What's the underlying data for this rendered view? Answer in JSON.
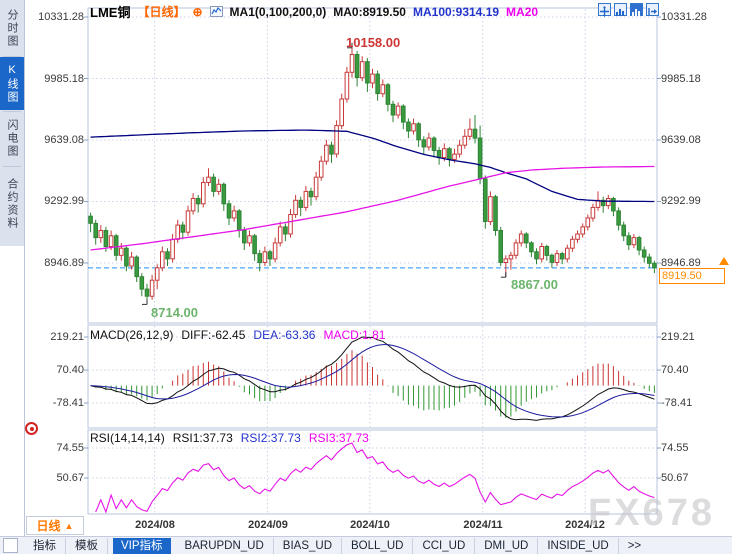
{
  "header": {
    "symbol": "LME铜",
    "period_tag": "【日线】",
    "add_icon": "⊕",
    "ma_settings": "MA1(0,100,200,0)",
    "ma0": "MA0:8919.50",
    "ma100": "MA100:9314.19",
    "ma20": "MA20"
  },
  "sidebar": {
    "active_index": 1,
    "items": [
      {
        "label": "分时图"
      },
      {
        "label": "K线图"
      },
      {
        "label": "闪电图"
      },
      {
        "label": "合约资料"
      }
    ]
  },
  "price_axis": {
    "labels": [
      "10331.28",
      "9985.18",
      "9639.08",
      "9292.99",
      "8946.89"
    ],
    "current": "8919.50"
  },
  "macd_axis": [
    "219.21",
    "70.40",
    "-78.41"
  ],
  "rsi_axis": [
    "74.55",
    "50.67"
  ],
  "macd_header": {
    "name": "MACD(26,12,9)",
    "diff": "DIFF:-62.45",
    "dea": "DEA:-63.36",
    "macd": "MACD:1.81"
  },
  "rsi_header": {
    "name": "RSI(14,14,14)",
    "rsi1": "RSI1:37.73",
    "rsi2": "RSI2:37.73",
    "rsi3": "RSI3:37.73"
  },
  "annotations": {
    "high": "10158.00",
    "low": "8714.00",
    "low2": "8867.00"
  },
  "time_axis": {
    "period": "日线",
    "arrow_up": "▲",
    "months": [
      "2024/08",
      "2024/09",
      "2024/10",
      "2024/11",
      "2024/12"
    ]
  },
  "tabs": [
    "指标",
    "模板",
    "VIP指标",
    "BARUPDN_UD",
    "BIAS_UD",
    "BOLL_UD",
    "CCI_UD",
    "DMI_UD",
    "INSIDE_UD",
    ">>"
  ],
  "tabs_active_index": 2,
  "watermark": "FX678",
  "colors": {
    "up_stroke": "#c93a3a",
    "down_fill": "#3a9a3f",
    "down_stroke": "#2e8434",
    "ma_navy": "#000080",
    "ma_magenta": "#e614e6",
    "dif_line": "#111111",
    "dea_line": "#1c1c9e",
    "rsi_line": "#e614e6",
    "grid": "#ccd2e6",
    "pane_border": "#b7c4dd",
    "tick": "#8fa3c8",
    "price_line": "#1f8fff",
    "accent_orange": "#ff8c00",
    "hist_up": "#cc3333",
    "hist_down": "#339933"
  },
  "chart_data": {
    "type": "candlestick",
    "title": "LME铜 日线",
    "x_months": [
      "2024/08",
      "2024/09",
      "2024/10",
      "2024/11",
      "2024/12"
    ],
    "month_start_indices": [
      13,
      35,
      55,
      77,
      97
    ],
    "price_gridlines": [
      10331.28,
      9985.18,
      9639.08,
      9292.99,
      8946.89
    ],
    "current_price": 8919.5,
    "high_marker_value": 10158.0,
    "low_marker_value": 8714.0,
    "low2_marker": {
      "index": 81,
      "value": 8867.0
    },
    "candles": [
      [
        9210,
        9230,
        9120,
        9170
      ],
      [
        9170,
        9190,
        9050,
        9090
      ],
      [
        9090,
        9160,
        9060,
        9130
      ],
      [
        9130,
        9150,
        9010,
        9040
      ],
      [
        9040,
        9130,
        9020,
        9100
      ],
      [
        9100,
        9110,
        8960,
        8990
      ],
      [
        8990,
        9060,
        8960,
        9030
      ],
      [
        9030,
        9040,
        8900,
        8930
      ],
      [
        8930,
        9010,
        8910,
        8980
      ],
      [
        8980,
        8990,
        8840,
        8870
      ],
      [
        8870,
        8890,
        8760,
        8800
      ],
      [
        8800,
        8830,
        8714,
        8760
      ],
      [
        8760,
        8880,
        8740,
        8850
      ],
      [
        8850,
        8940,
        8800,
        8920
      ],
      [
        8920,
        9040,
        8900,
        9010
      ],
      [
        9010,
        9030,
        8930,
        8970
      ],
      [
        8970,
        9110,
        8950,
        9080
      ],
      [
        9080,
        9190,
        9060,
        9160
      ],
      [
        9160,
        9180,
        9080,
        9120
      ],
      [
        9120,
        9270,
        9100,
        9240
      ],
      [
        9240,
        9340,
        9220,
        9310
      ],
      [
        9310,
        9330,
        9230,
        9280
      ],
      [
        9280,
        9430,
        9260,
        9400
      ],
      [
        9400,
        9480,
        9380,
        9430
      ],
      [
        9430,
        9450,
        9320,
        9350
      ],
      [
        9350,
        9420,
        9330,
        9390
      ],
      [
        9390,
        9400,
        9240,
        9280
      ],
      [
        9280,
        9300,
        9160,
        9200
      ],
      [
        9200,
        9270,
        9180,
        9240
      ],
      [
        9240,
        9250,
        9090,
        9130
      ],
      [
        9130,
        9150,
        9020,
        9060
      ],
      [
        9060,
        9130,
        9040,
        9100
      ],
      [
        9100,
        9110,
        8960,
        9000
      ],
      [
        9000,
        9020,
        8900,
        8950
      ],
      [
        8950,
        9040,
        8930,
        9010
      ],
      [
        9010,
        9020,
        8930,
        8970
      ],
      [
        8970,
        9090,
        8950,
        9060
      ],
      [
        9060,
        9180,
        9040,
        9150
      ],
      [
        9150,
        9170,
        9070,
        9110
      ],
      [
        9110,
        9250,
        9090,
        9220
      ],
      [
        9220,
        9330,
        9200,
        9300
      ],
      [
        9300,
        9320,
        9210,
        9260
      ],
      [
        9260,
        9380,
        9240,
        9350
      ],
      [
        9350,
        9370,
        9270,
        9320
      ],
      [
        9320,
        9460,
        9300,
        9430
      ],
      [
        9430,
        9550,
        9410,
        9520
      ],
      [
        9520,
        9640,
        9500,
        9610
      ],
      [
        9610,
        9630,
        9510,
        9560
      ],
      [
        9560,
        9750,
        9540,
        9720
      ],
      [
        9720,
        9900,
        9700,
        9870
      ],
      [
        9870,
        10050,
        9850,
        10020
      ],
      [
        10020,
        10158,
        9990,
        10120
      ],
      [
        10120,
        10140,
        9940,
        9990
      ],
      [
        9990,
        10110,
        9970,
        10080
      ],
      [
        10080,
        10100,
        9910,
        9960
      ],
      [
        9960,
        10040,
        9930,
        10010
      ],
      [
        10010,
        10030,
        9860,
        9900
      ],
      [
        9900,
        9980,
        9880,
        9950
      ],
      [
        9950,
        9960,
        9800,
        9840
      ],
      [
        9840,
        9860,
        9740,
        9780
      ],
      [
        9780,
        9850,
        9760,
        9830
      ],
      [
        9830,
        9840,
        9700,
        9740
      ],
      [
        9740,
        9760,
        9650,
        9690
      ],
      [
        9690,
        9760,
        9670,
        9730
      ],
      [
        9730,
        9740,
        9600,
        9640
      ],
      [
        9640,
        9660,
        9560,
        9600
      ],
      [
        9600,
        9680,
        9580,
        9650
      ],
      [
        9650,
        9660,
        9540,
        9580
      ],
      [
        9580,
        9600,
        9500,
        9540
      ],
      [
        9540,
        9620,
        9520,
        9590
      ],
      [
        9590,
        9600,
        9490,
        9530
      ],
      [
        9530,
        9590,
        9510,
        9560
      ],
      [
        9560,
        9640,
        9540,
        9610
      ],
      [
        9610,
        9700,
        9590,
        9660
      ],
      [
        9660,
        9760,
        9640,
        9700
      ],
      [
        9700,
        9780,
        9620,
        9650
      ],
      [
        9650,
        9720,
        9390,
        9420
      ],
      [
        9420,
        9440,
        9140,
        9180
      ],
      [
        9180,
        9350,
        9160,
        9320
      ],
      [
        9320,
        9330,
        9100,
        9130
      ],
      [
        9130,
        9150,
        8930,
        8950
      ],
      [
        8950,
        8990,
        8867,
        8970
      ],
      [
        8970,
        9010,
        8910,
        8990
      ],
      [
        8990,
        9080,
        8970,
        9060
      ],
      [
        9060,
        9130,
        9040,
        9110
      ],
      [
        9110,
        9120,
        9030,
        9060
      ],
      [
        9060,
        9070,
        8980,
        9010
      ],
      [
        9010,
        9030,
        8940,
        8970
      ],
      [
        8970,
        9060,
        8950,
        9040
      ],
      [
        9040,
        9050,
        8960,
        8990
      ],
      [
        8990,
        9000,
        8920,
        8950
      ],
      [
        8950,
        9020,
        8930,
        9000
      ],
      [
        9000,
        9010,
        8940,
        8970
      ],
      [
        8970,
        9050,
        8950,
        9030
      ],
      [
        9030,
        9100,
        9010,
        9080
      ],
      [
        9080,
        9130,
        9060,
        9110
      ],
      [
        9110,
        9170,
        9090,
        9150
      ],
      [
        9150,
        9220,
        9130,
        9200
      ],
      [
        9200,
        9280,
        9180,
        9260
      ],
      [
        9260,
        9350,
        9240,
        9300
      ],
      [
        9300,
        9320,
        9230,
        9270
      ],
      [
        9270,
        9330,
        9250,
        9310
      ],
      [
        9310,
        9320,
        9210,
        9240
      ],
      [
        9240,
        9260,
        9130,
        9160
      ],
      [
        9160,
        9180,
        9070,
        9100
      ],
      [
        9100,
        9120,
        9020,
        9050
      ],
      [
        9050,
        9110,
        9030,
        9090
      ],
      [
        9090,
        9100,
        8990,
        9020
      ],
      [
        9020,
        9040,
        8950,
        8980
      ],
      [
        8980,
        9000,
        8920,
        8945
      ],
      [
        8945,
        8960,
        8890,
        8919.5
      ]
    ],
    "ma_navy_anchors": [
      [
        0,
        9655
      ],
      [
        10,
        9668
      ],
      [
        20,
        9680
      ],
      [
        30,
        9690
      ],
      [
        42,
        9695
      ],
      [
        50,
        9688
      ],
      [
        55,
        9650
      ],
      [
        60,
        9600
      ],
      [
        65,
        9558
      ],
      [
        70,
        9528
      ],
      [
        75,
        9505
      ],
      [
        78,
        9485
      ],
      [
        81,
        9455
      ],
      [
        85,
        9420
      ],
      [
        90,
        9350
      ],
      [
        95,
        9305
      ],
      [
        100,
        9295
      ],
      [
        110,
        9293
      ]
    ],
    "ma_magenta_anchors": [
      [
        0,
        9020
      ],
      [
        10,
        9055
      ],
      [
        20,
        9095
      ],
      [
        30,
        9135
      ],
      [
        40,
        9185
      ],
      [
        50,
        9235
      ],
      [
        60,
        9300
      ],
      [
        70,
        9380
      ],
      [
        76,
        9420
      ],
      [
        81,
        9455
      ],
      [
        86,
        9470
      ],
      [
        92,
        9480
      ],
      [
        100,
        9487
      ],
      [
        110,
        9490
      ]
    ],
    "macd": {
      "params": "26,12,9",
      "diff": -62.45,
      "dea": -63.36,
      "macd": 1.81,
      "gridlines": [
        219.21,
        70.4,
        -78.41
      ]
    },
    "rsi": {
      "params": "14,14,14",
      "rsi1": 37.73,
      "rsi2": 37.73,
      "rsi3": 37.73,
      "gridlines": [
        74.55,
        50.67
      ]
    }
  }
}
